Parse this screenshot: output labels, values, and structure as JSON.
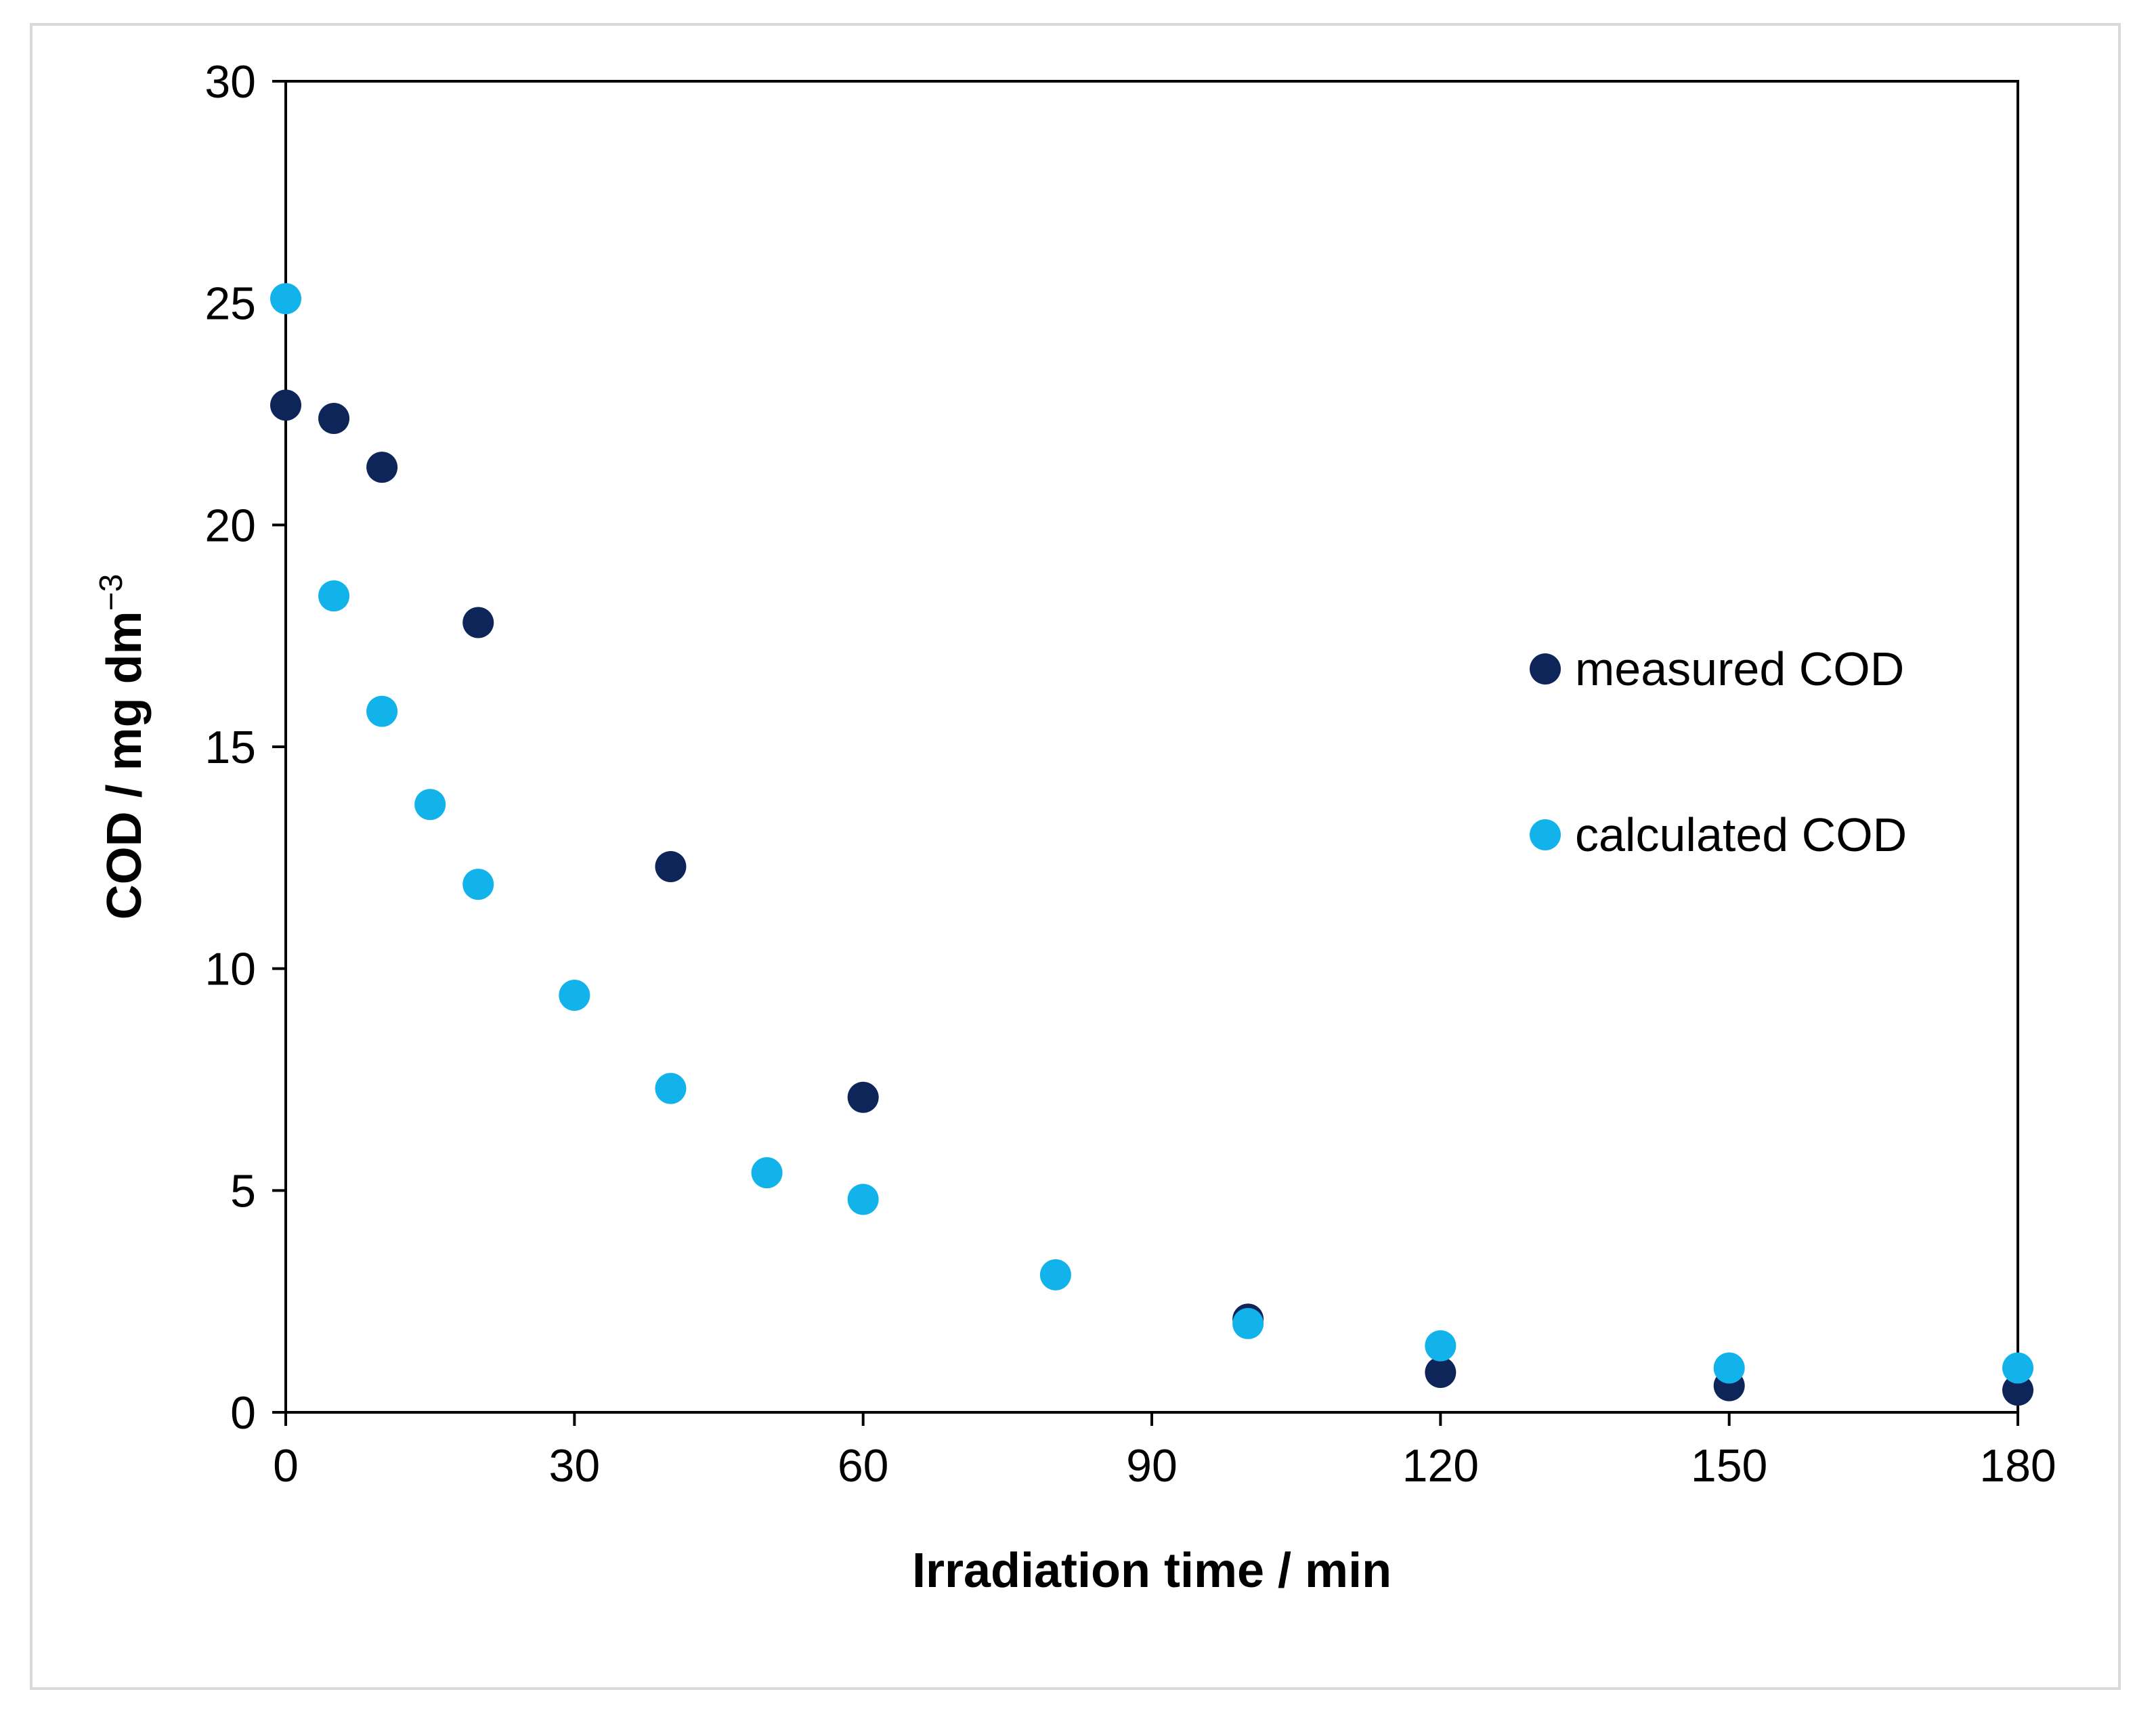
{
  "chart_data": {
    "type": "scatter",
    "title": "",
    "xlabel": "Irradiation time / min",
    "ylabel_main": "COD / mg dm",
    "ylabel_sup": "−3",
    "xlim": [
      0,
      180
    ],
    "ylim": [
      0,
      30
    ],
    "x_ticks": [
      0,
      30,
      60,
      90,
      120,
      150,
      180
    ],
    "y_ticks": [
      0,
      5,
      10,
      15,
      20,
      25,
      30
    ],
    "grid": false,
    "legend_position": "right-middle",
    "series": [
      {
        "name": "measured COD",
        "color": "#0d2559",
        "points": [
          {
            "x": 0,
            "y": 22.7
          },
          {
            "x": 5,
            "y": 22.4
          },
          {
            "x": 10,
            "y": 21.3
          },
          {
            "x": 20,
            "y": 17.8
          },
          {
            "x": 40,
            "y": 12.3
          },
          {
            "x": 60,
            "y": 7.1
          },
          {
            "x": 100,
            "y": 2.1
          },
          {
            "x": 120,
            "y": 0.9
          },
          {
            "x": 150,
            "y": 0.6
          },
          {
            "x": 180,
            "y": 0.5
          }
        ]
      },
      {
        "name": "calculated COD",
        "color": "#12b3ea",
        "points": [
          {
            "x": 0,
            "y": 25.1
          },
          {
            "x": 5,
            "y": 18.4
          },
          {
            "x": 10,
            "y": 15.8
          },
          {
            "x": 15,
            "y": 13.7
          },
          {
            "x": 20,
            "y": 11.9
          },
          {
            "x": 30,
            "y": 9.4
          },
          {
            "x": 40,
            "y": 7.3
          },
          {
            "x": 50,
            "y": 5.4
          },
          {
            "x": 60,
            "y": 4.8
          },
          {
            "x": 80,
            "y": 3.1
          },
          {
            "x": 100,
            "y": 2.0
          },
          {
            "x": 120,
            "y": 1.5
          },
          {
            "x": 150,
            "y": 1.0
          },
          {
            "x": 180,
            "y": 1.0
          }
        ]
      }
    ]
  }
}
